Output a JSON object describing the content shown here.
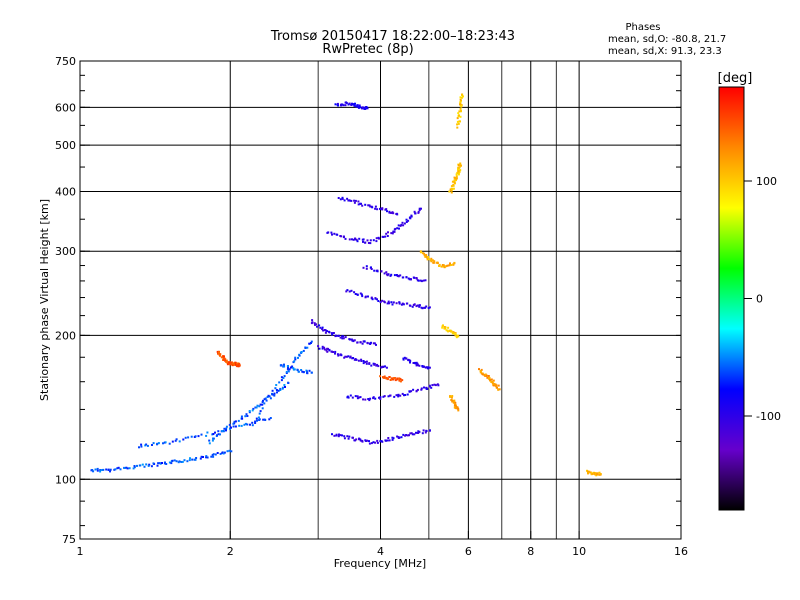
{
  "chart_data": {
    "type": "scatter",
    "title": "Tromsø 20150417 18:22:00–18:23:43",
    "subtitle": "RwPretec (8p)",
    "xlabel": "Frequency [MHz]",
    "ylabel": "Stationary phase Virtual Height [km]",
    "x_scale": "log",
    "y_scale": "log",
    "xlim": [
      1,
      16
    ],
    "ylim": [
      75,
      750
    ],
    "x_ticks": [
      1,
      2,
      4,
      6,
      8,
      10,
      16
    ],
    "x_minor_ticks": [
      3,
      5,
      7,
      9
    ],
    "y_ticks": [
      75,
      100,
      200,
      300,
      400,
      500,
      600,
      750
    ],
    "grid": true,
    "legend": {
      "header": "Phases",
      "lines": [
        "mean, sd,O: -80.8, 21.7",
        "mean, sd,X:  91.3, 23.3"
      ]
    },
    "colorbar": {
      "label": "[deg]",
      "range": [
        -180,
        180
      ],
      "ticks": [
        100,
        0,
        -100
      ],
      "colors": [
        "#ff0000",
        "#ff8800",
        "#ffff00",
        "#00ff00",
        "#00ffff",
        "#0000ff",
        "#6600cc",
        "#000000"
      ]
    },
    "traces": [
      {
        "phase": -60,
        "points": [
          [
            1.05,
            105
          ],
          [
            1.15,
            105
          ],
          [
            1.3,
            107
          ],
          [
            1.45,
            108
          ],
          [
            1.6,
            110
          ],
          [
            1.8,
            112
          ],
          [
            2.0,
            115
          ]
        ]
      },
      {
        "phase": -60,
        "points": [
          [
            1.3,
            118
          ],
          [
            1.5,
            120
          ],
          [
            1.8,
            125
          ],
          [
            2.1,
            130
          ],
          [
            2.4,
            135
          ]
        ]
      },
      {
        "phase": -60,
        "points": [
          [
            1.8,
            120
          ],
          [
            2.0,
            130
          ],
          [
            2.2,
            140
          ],
          [
            2.4,
            150
          ],
          [
            2.6,
            160
          ]
        ]
      },
      {
        "phase": -60,
        "points": [
          [
            2.2,
            130
          ],
          [
            2.5,
            160
          ],
          [
            2.7,
            180
          ],
          [
            2.9,
            195
          ]
        ]
      },
      {
        "phase": 150,
        "points": [
          [
            1.88,
            185
          ],
          [
            1.93,
            180
          ],
          [
            1.98,
            176
          ],
          [
            2.03,
            175
          ],
          [
            2.08,
            174
          ]
        ]
      },
      {
        "phase": -60,
        "points": [
          [
            2.5,
            175
          ],
          [
            2.7,
            170
          ],
          [
            2.9,
            168
          ]
        ]
      },
      {
        "phase": -100,
        "points": [
          [
            2.9,
            215
          ],
          [
            3.1,
            205
          ],
          [
            3.3,
            200
          ],
          [
            3.6,
            195
          ],
          [
            3.9,
            192
          ]
        ]
      },
      {
        "phase": -100,
        "points": [
          [
            3.0,
            190
          ],
          [
            3.2,
            185
          ],
          [
            3.5,
            180
          ],
          [
            3.8,
            175
          ],
          [
            4.1,
            172
          ]
        ]
      },
      {
        "phase": -100,
        "points": [
          [
            3.2,
            125
          ],
          [
            3.5,
            122
          ],
          [
            3.8,
            120
          ],
          [
            4.2,
            122
          ],
          [
            4.6,
            125
          ],
          [
            5.0,
            127
          ]
        ]
      },
      {
        "phase": -100,
        "points": [
          [
            3.4,
            150
          ],
          [
            3.8,
            148
          ],
          [
            4.3,
            150
          ],
          [
            4.8,
            155
          ],
          [
            5.2,
            158
          ]
        ]
      },
      {
        "phase": -100,
        "points": [
          [
            3.4,
            250
          ],
          [
            3.8,
            240
          ],
          [
            4.2,
            235
          ],
          [
            4.6,
            232
          ],
          [
            5.0,
            230
          ]
        ]
      },
      {
        "phase": -100,
        "points": [
          [
            3.1,
            330
          ],
          [
            3.5,
            320
          ],
          [
            3.8,
            315
          ],
          [
            4.2,
            330
          ],
          [
            4.5,
            350
          ],
          [
            4.8,
            370
          ]
        ]
      },
      {
        "phase": -100,
        "points": [
          [
            3.3,
            390
          ],
          [
            3.6,
            380
          ],
          [
            4.0,
            370
          ],
          [
            4.3,
            360
          ]
        ]
      },
      {
        "phase": -90,
        "points": [
          [
            3.25,
            610
          ],
          [
            3.45,
            615
          ],
          [
            3.6,
            605
          ],
          [
            3.75,
            600
          ]
        ]
      },
      {
        "phase": -100,
        "points": [
          [
            3.7,
            280
          ],
          [
            4.1,
            270
          ],
          [
            4.5,
            265
          ],
          [
            4.9,
            262
          ]
        ]
      },
      {
        "phase": 150,
        "points": [
          [
            4.0,
            165
          ],
          [
            4.2,
            163
          ],
          [
            4.4,
            162
          ]
        ]
      },
      {
        "phase": 110,
        "points": [
          [
            4.8,
            300
          ],
          [
            5.0,
            290
          ],
          [
            5.3,
            280
          ],
          [
            5.6,
            285
          ]
        ]
      },
      {
        "phase": 100,
        "points": [
          [
            5.3,
            210
          ],
          [
            5.5,
            205
          ],
          [
            5.7,
            200
          ]
        ]
      },
      {
        "phase": 105,
        "points": [
          [
            5.5,
            400
          ],
          [
            5.6,
            420
          ],
          [
            5.7,
            440
          ],
          [
            5.75,
            460
          ]
        ]
      },
      {
        "phase": 120,
        "points": [
          [
            5.5,
            150
          ],
          [
            5.6,
            145
          ],
          [
            5.7,
            140
          ]
        ]
      },
      {
        "phase": 120,
        "points": [
          [
            6.3,
            170
          ],
          [
            6.5,
            165
          ],
          [
            6.7,
            160
          ],
          [
            6.9,
            155
          ]
        ]
      },
      {
        "phase": 100,
        "points": [
          [
            5.7,
            550
          ],
          [
            5.75,
            600
          ],
          [
            5.8,
            640
          ]
        ]
      },
      {
        "phase": -100,
        "points": [
          [
            4.4,
            180
          ],
          [
            4.7,
            175
          ],
          [
            5.0,
            172
          ]
        ]
      },
      {
        "phase": 110,
        "points": [
          [
            10.3,
            104
          ],
          [
            10.7,
            103
          ],
          [
            11.0,
            103
          ]
        ]
      }
    ]
  }
}
